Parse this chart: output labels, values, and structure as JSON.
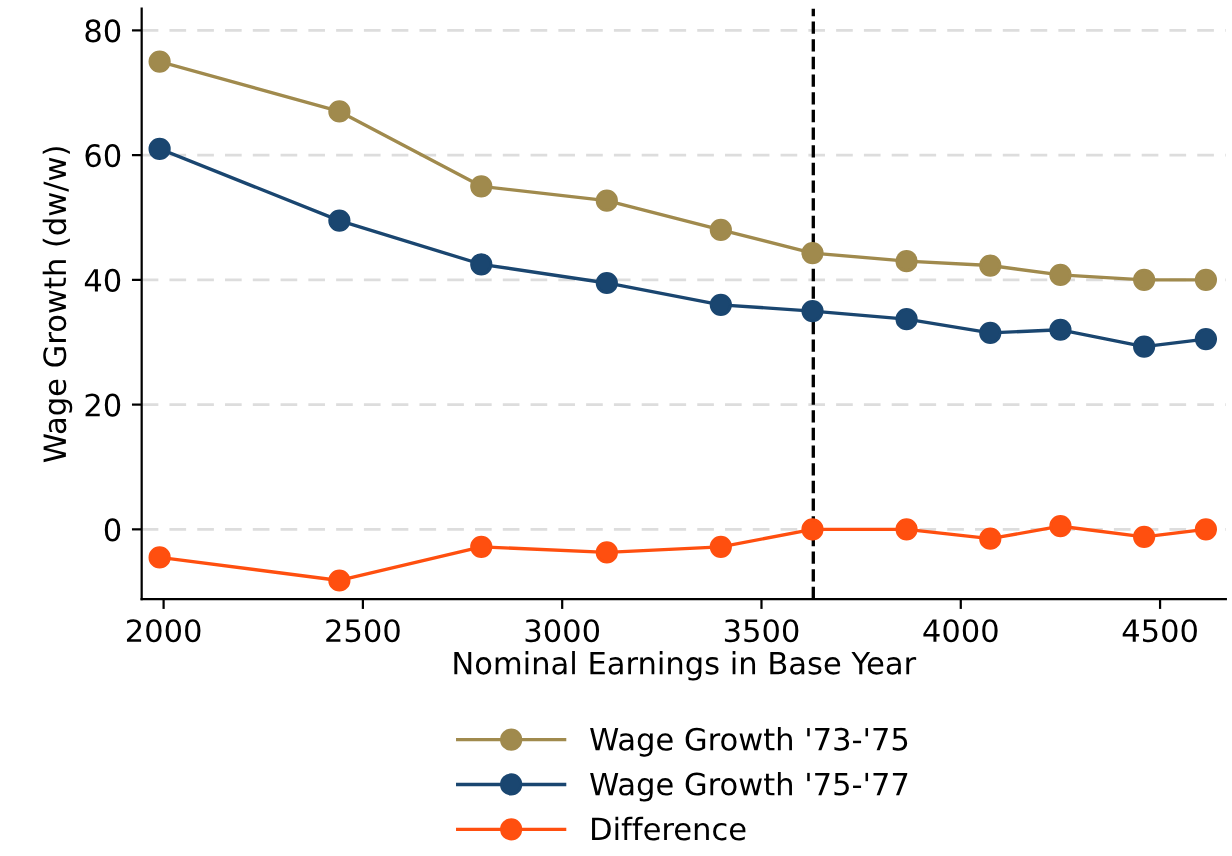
{
  "chart_data": {
    "type": "line",
    "xlabel": "Nominal Earnings in Base Year",
    "ylabel": "Wage Growth (dw/w)",
    "x": [
      1990,
      2441,
      2797,
      3112,
      3398,
      3628,
      3864,
      4074,
      4250,
      4460,
      4615
    ],
    "series": [
      {
        "name": "Wage Growth '73-'75",
        "color": "#a08a4d",
        "values": [
          75,
          67,
          55,
          52.7,
          48,
          44.3,
          43,
          42.3,
          40.8,
          40,
          40
        ]
      },
      {
        "name": "Wage Growth '75-'77",
        "color": "#1a4670",
        "values": [
          61,
          49.5,
          42.5,
          39.5,
          36,
          35,
          33.7,
          31.5,
          32,
          29.3,
          30.5
        ]
      },
      {
        "name": "Difference",
        "color": "#ff4f0f",
        "values": [
          -4.5,
          -8.2,
          -2.8,
          -3.7,
          -2.8,
          0,
          0,
          -1.5,
          0.5,
          -1.2,
          0
        ]
      }
    ],
    "xlim": [
      1945,
      4665
    ],
    "ylim": [
      -11.2,
      83.5
    ],
    "xticks": [
      2000,
      2500,
      3000,
      3500,
      4000,
      4500
    ],
    "yticks": [
      0,
      20,
      40,
      60,
      80
    ],
    "ref_lines": [
      {
        "axis": "x",
        "value": 3630,
        "color": "#000000",
        "line_style": "dashed"
      }
    ],
    "grid": "y",
    "legend": "bottom",
    "marker": "circle",
    "line_style": "solid"
  }
}
